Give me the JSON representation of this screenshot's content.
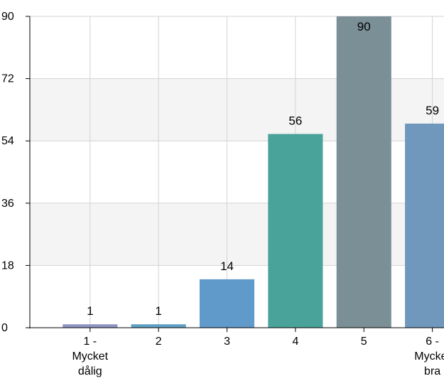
{
  "chart_data": {
    "type": "bar",
    "categories": [
      [
        "1 -",
        "Mycket",
        "dålig"
      ],
      [
        "2"
      ],
      [
        "3"
      ],
      [
        "4"
      ],
      [
        "5"
      ],
      [
        "6 -",
        "Mycket",
        "bra"
      ]
    ],
    "values": [
      1,
      1,
      14,
      56,
      90,
      59
    ],
    "data_labels": [
      "1",
      "1",
      "14",
      "56",
      "90",
      "59"
    ],
    "bar_colors": [
      "#8f96c4",
      "#5fa0c4",
      "#5f9acb",
      "#4aa39a",
      "#7b8f97",
      "#7098bd"
    ],
    "ylim": [
      0,
      90
    ],
    "yticks": [
      0,
      18,
      36,
      54,
      72,
      90
    ],
    "grid": true,
    "band_color": "#f4f4f4",
    "grid_color": "#d3d3d3",
    "axis_color": "#000000"
  }
}
